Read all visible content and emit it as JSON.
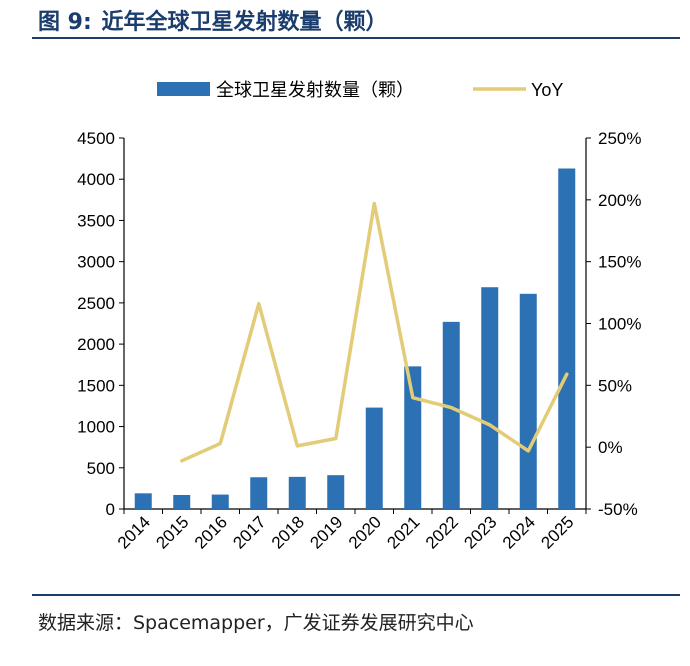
{
  "figure": {
    "label": "图 9:",
    "title": "近年全球卫星发射数量（颗）",
    "source": "数据来源：Spacemapper，广发证券发展研究中心"
  },
  "chart_data": {
    "type": "bar+line",
    "title": "近年全球卫星发射数量（颗）",
    "categories": [
      "2014",
      "2015",
      "2016",
      "2017",
      "2018",
      "2019",
      "2020",
      "2021",
      "2022",
      "2023",
      "2024",
      "2025"
    ],
    "series": [
      {
        "name": "全球卫星发射数量（颗）",
        "kind": "bar",
        "axis": "left",
        "color": "#2b71b3",
        "values": [
          190,
          170,
          175,
          385,
          390,
          410,
          1230,
          1730,
          2270,
          2690,
          2610,
          4130
        ]
      },
      {
        "name": "YoY",
        "kind": "line",
        "axis": "right",
        "color": "#e3cc77",
        "values": [
          null,
          -11,
          3,
          116,
          1,
          7,
          197,
          40,
          32,
          18,
          -3,
          59
        ]
      }
    ],
    "left_axis": {
      "min": 0,
      "max": 4500,
      "step": 500
    },
    "right_axis": {
      "min": -50,
      "max": 250,
      "step": 50,
      "unit": "%"
    },
    "legend_position": "top-center",
    "grid": false
  }
}
